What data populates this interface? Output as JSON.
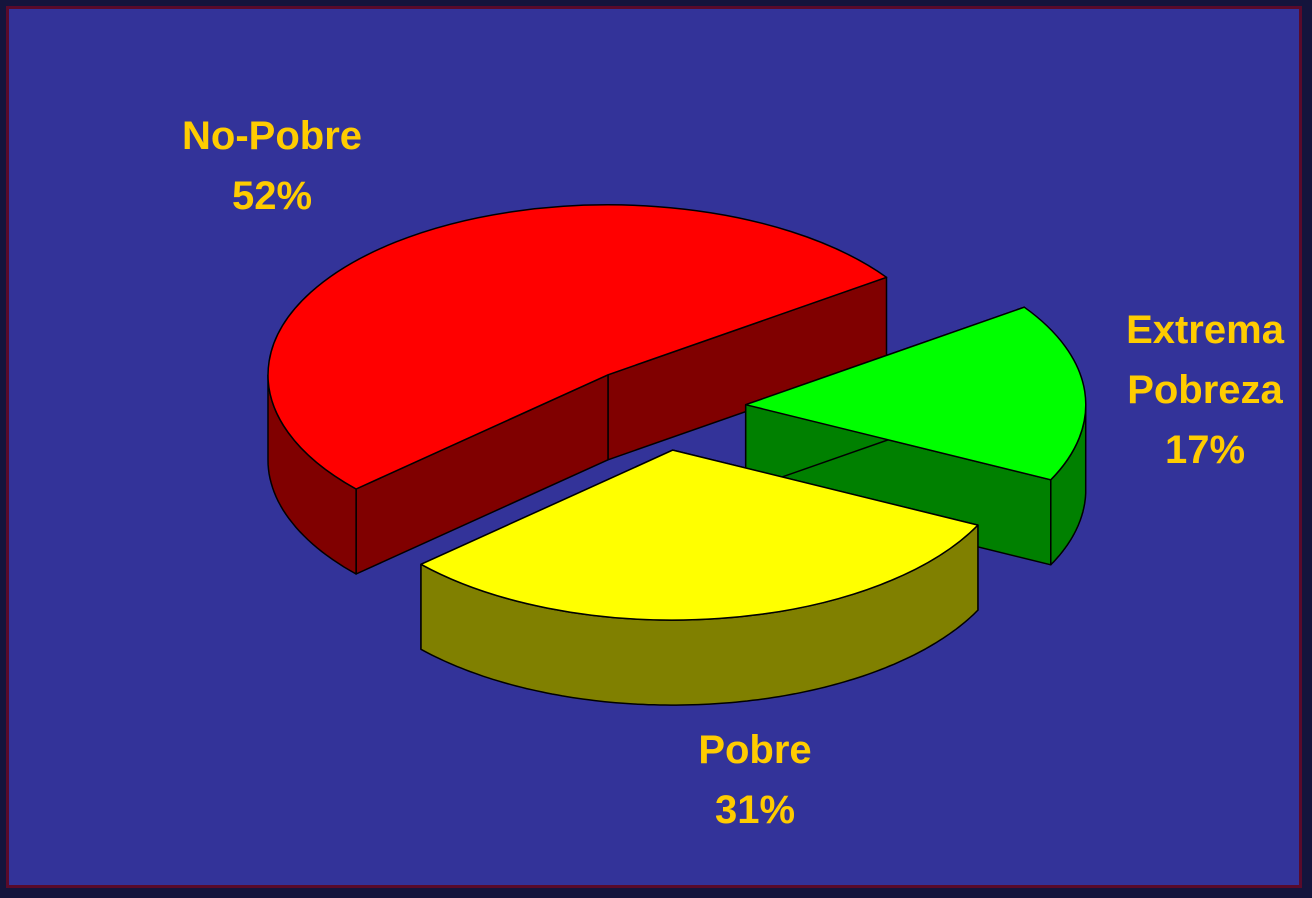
{
  "chart_data": {
    "type": "pie",
    "categories": [
      "No-Pobre",
      "Pobre",
      "Extrema Pobreza"
    ],
    "values": [
      52,
      31,
      17
    ],
    "value_labels": [
      "52%",
      "31%",
      "17%"
    ],
    "colors": [
      "#ff0000",
      "#ffff00",
      "#00ff00"
    ],
    "side_colors": [
      "#800000",
      "#808000",
      "#008000"
    ],
    "label_color": "#ffcc00",
    "exploded": true,
    "three_d": true
  }
}
